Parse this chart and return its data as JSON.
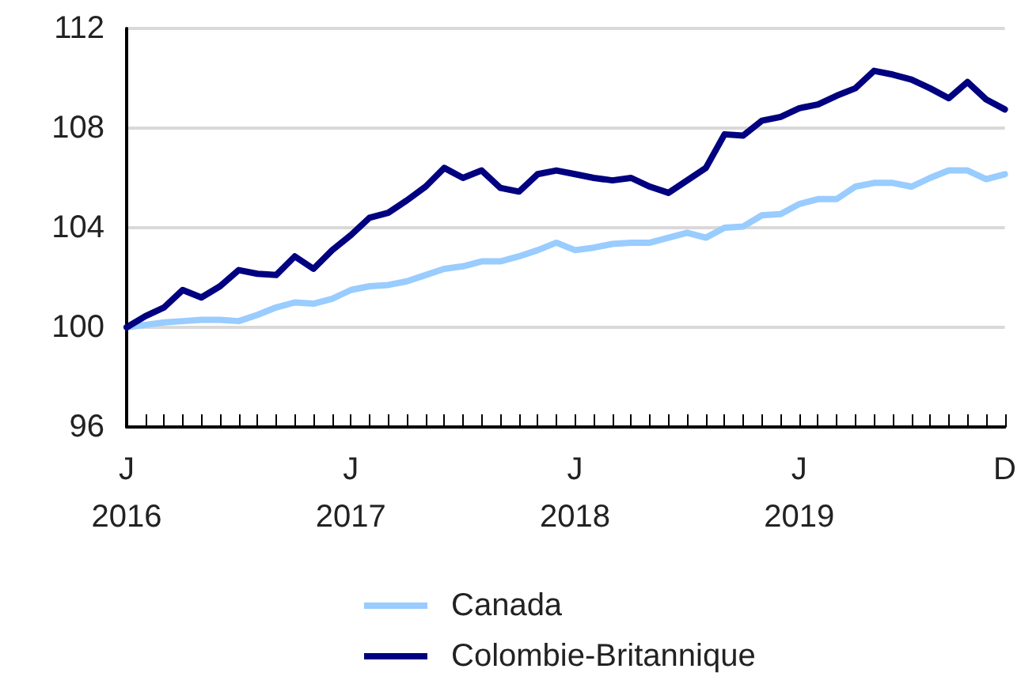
{
  "chart_data": {
    "type": "line",
    "categories": [
      "J\n2016",
      null,
      null,
      null,
      null,
      null,
      null,
      null,
      null,
      null,
      null,
      null,
      "J\n2017",
      null,
      null,
      null,
      null,
      null,
      null,
      null,
      null,
      null,
      null,
      null,
      "J\n2018",
      null,
      null,
      null,
      null,
      null,
      null,
      null,
      null,
      null,
      null,
      null,
      "J\n2019",
      null,
      null,
      null,
      null,
      null,
      null,
      null,
      null,
      null,
      null,
      "D"
    ],
    "series": [
      {
        "name": "Canada",
        "color": "#99ccff",
        "values": [
          100,
          100.1,
          100.2,
          100.25,
          100.3,
          100.3,
          100.25,
          100.5,
          100.8,
          101.0,
          100.95,
          101.15,
          101.5,
          101.65,
          101.7,
          101.85,
          102.1,
          102.35,
          102.45,
          102.65,
          102.65,
          102.85,
          103.1,
          103.4,
          103.1,
          103.2,
          103.35,
          103.4,
          103.4,
          103.6,
          103.8,
          103.6,
          104.0,
          104.05,
          104.5,
          104.55,
          104.95,
          105.15,
          105.15,
          105.65,
          105.8,
          105.8,
          105.65,
          106.0,
          106.3,
          106.3,
          105.95,
          106.15
        ]
      },
      {
        "name": "Colombie-Britannique",
        "color": "#000080",
        "values": [
          100,
          100.45,
          100.8,
          101.5,
          101.2,
          101.65,
          102.3,
          102.15,
          102.1,
          102.85,
          102.35,
          103.1,
          103.7,
          104.4,
          104.6,
          105.1,
          105.65,
          106.4,
          106.0,
          106.3,
          105.6,
          105.45,
          106.15,
          106.3,
          106.15,
          106.0,
          105.9,
          106.0,
          105.65,
          105.4,
          105.9,
          106.4,
          107.75,
          107.7,
          108.3,
          108.45,
          108.8,
          108.95,
          109.3,
          109.6,
          110.3,
          110.15,
          109.95,
          109.6,
          109.2,
          109.85,
          109.15,
          108.75
        ]
      }
    ],
    "ylim": [
      96,
      112
    ],
    "yticks": [
      96,
      100,
      104,
      108,
      112
    ],
    "grid": "y",
    "legend": "bottom",
    "marker": "none",
    "line_style": "solid"
  }
}
